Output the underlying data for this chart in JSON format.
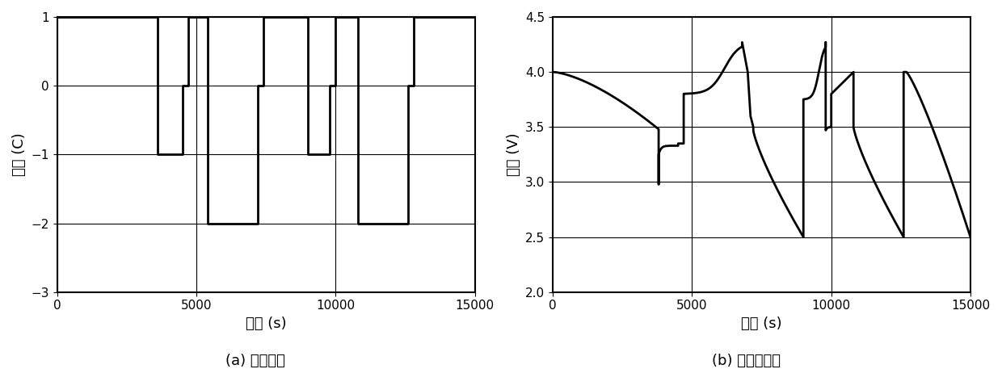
{
  "left_title": "(a) 电流激励",
  "right_title": "(b) 端电压响应",
  "left_ylabel": "倍率 (C)",
  "right_ylabel": "电压 (V)",
  "xlabel": "时间 (s)",
  "left_xlim": [
    0,
    15000
  ],
  "left_ylim": [
    -3,
    1
  ],
  "right_xlim": [
    0,
    15000
  ],
  "right_ylim": [
    2,
    4.5
  ],
  "left_yticks": [
    -3,
    -2,
    -1,
    0,
    1
  ],
  "right_yticks": [
    2,
    2.5,
    3,
    3.5,
    4,
    4.5
  ],
  "left_xticks": [
    0,
    5000,
    10000,
    15000
  ],
  "right_xticks": [
    0,
    5000,
    10000,
    15000
  ],
  "line_color": "#000000",
  "line_width": 2.0,
  "grid_color": "#000000",
  "grid_linewidth": 0.8,
  "font_size_label": 13,
  "font_size_tick": 11,
  "font_size_caption": 13,
  "bg_color": "#ffffff",
  "current_breakpoints": [
    [
      0,
      1
    ],
    [
      3600,
      1
    ],
    [
      3600,
      -1
    ],
    [
      4500,
      -1
    ],
    [
      4500,
      0
    ],
    [
      4700,
      0
    ],
    [
      4700,
      1
    ],
    [
      5400,
      1
    ],
    [
      5400,
      -2
    ],
    [
      7200,
      -2
    ],
    [
      7200,
      0
    ],
    [
      7400,
      0
    ],
    [
      7400,
      1
    ],
    [
      9000,
      1
    ],
    [
      9000,
      -1
    ],
    [
      9800,
      -1
    ],
    [
      9800,
      0
    ],
    [
      10000,
      0
    ],
    [
      10000,
      1
    ],
    [
      10800,
      1
    ],
    [
      10800,
      -2
    ],
    [
      12600,
      -2
    ],
    [
      12600,
      0
    ],
    [
      12800,
      0
    ],
    [
      12800,
      1
    ],
    [
      15000,
      1
    ]
  ]
}
